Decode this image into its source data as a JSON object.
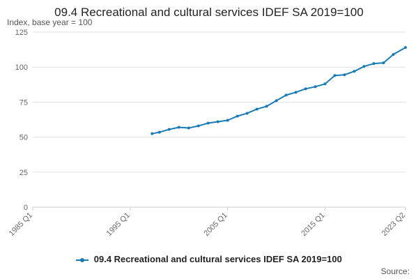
{
  "title": "09.4 Recreational and cultural services IDEF SA 2019=100",
  "subtitle": "Index, base year = 100",
  "legend_label": "09.4 Recreational and cultural services IDEF SA 2019=100",
  "source_label": "Source:",
  "colors": {
    "series": "#1a7ab6",
    "grid": "#e0e0e0",
    "axis": "#cccccc"
  },
  "chart_data": {
    "type": "line",
    "title": "09.4 Recreational and cultural services IDEF SA 2019=100",
    "ylabel": "Index, base year = 100",
    "xlabel": "",
    "ylim": [
      0,
      125
    ],
    "y_ticks": [
      0,
      25,
      50,
      75,
      100,
      125
    ],
    "x_range": [
      "1985 Q1",
      "2023 Q2"
    ],
    "x_ticks": [
      "1985 Q1",
      "1995 Q1",
      "2005 Q1",
      "2015 Q1",
      "2023 Q2"
    ],
    "grid": true,
    "legend_position": "bottom",
    "series": [
      {
        "name": "09.4 Recreational and cultural services IDEF SA 2019=100",
        "x": [
          "1997 Q2",
          "1998 Q1",
          "1999 Q1",
          "2000 Q1",
          "2001 Q1",
          "2002 Q1",
          "2003 Q1",
          "2004 Q1",
          "2005 Q1",
          "2006 Q1",
          "2007 Q1",
          "2008 Q1",
          "2009 Q1",
          "2010 Q1",
          "2011 Q1",
          "2012 Q1",
          "2013 Q1",
          "2014 Q1",
          "2015 Q1",
          "2016 Q1",
          "2017 Q1",
          "2018 Q1",
          "2019 Q1",
          "2020 Q1",
          "2021 Q1",
          "2022 Q1",
          "2023 Q2"
        ],
        "y": [
          52.5,
          53.5,
          55.5,
          57,
          56.5,
          58,
          60,
          61,
          62,
          65,
          67,
          70,
          72,
          76,
          80,
          82,
          84.5,
          86,
          88,
          94,
          94.5,
          97,
          100.5,
          102.5,
          103,
          109,
          114
        ]
      }
    ]
  }
}
